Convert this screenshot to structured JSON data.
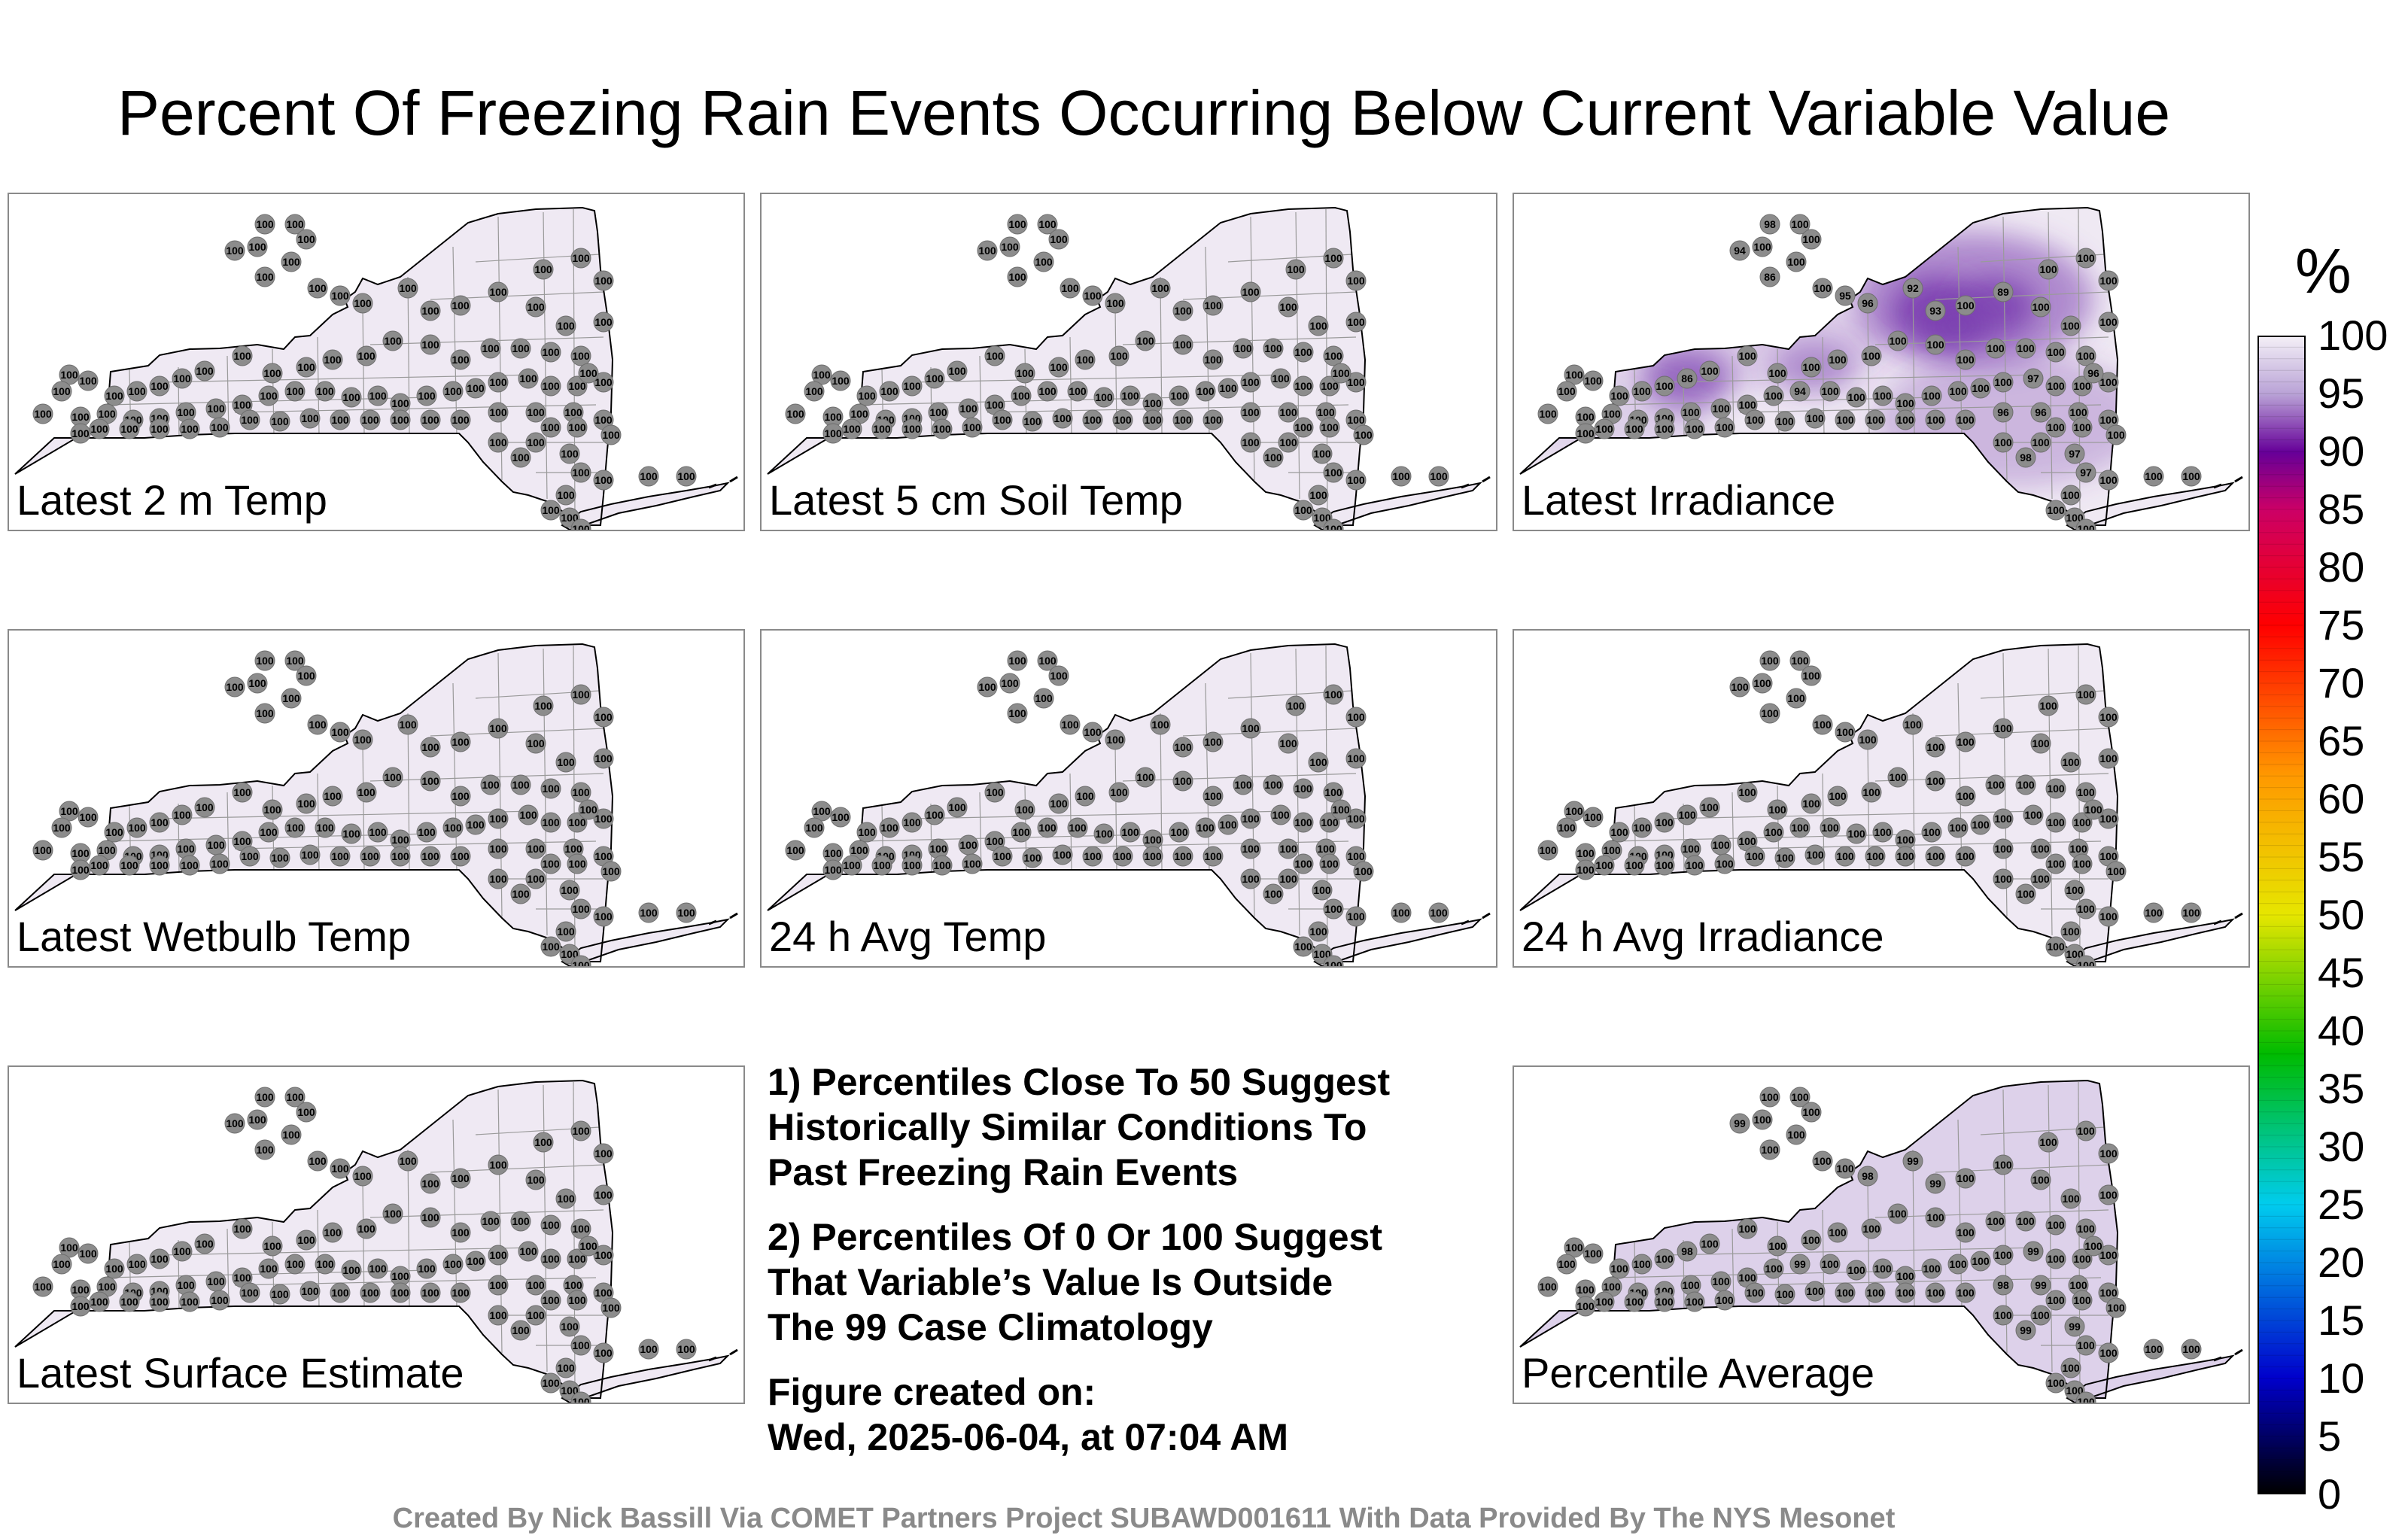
{
  "title": "Percent Of Freezing Rain Events Occurring Below Current Variable Value",
  "unit_label": "%",
  "colors": {
    "map_fill_light": "#efe9f3",
    "map_fill_medium": "#ddd1ea",
    "station_marker": "#8c8c8c",
    "map_outline": "#000000",
    "county_lines": "#9a9a9a"
  },
  "panels": [
    {
      "label": "Latest 2 m Temp"
    },
    {
      "label": "Latest 5 cm Soil Temp"
    },
    {
      "label": "Latest Irradiance"
    },
    {
      "label": "Latest Wetbulb Temp"
    },
    {
      "label": "24 h Avg Temp"
    },
    {
      "label": "24 h Avg Irradiance"
    },
    {
      "label": "Latest Surface Estimate"
    },
    {
      "label": "Percentile Average"
    }
  ],
  "notes": {
    "note1_line1": "1) Percentiles Close To 50 Suggest",
    "note1_line2": "Historically Similar Conditions To",
    "note1_line3": "Past Freezing Rain Events",
    "note2_line1": "2) Percentiles Of 0 Or 100 Suggest",
    "note2_line2": "That Variable’s Value Is Outside",
    "note2_line3": "The 99 Case Climatology",
    "created_label": "Figure created on:",
    "created_date": "Wed, 2025-06-04, at 07:04 AM"
  },
  "credit": "Created By Nick Bassill Via COMET Partners Project SUBAWD001611 With Data Provided By The NYS Mesonet",
  "chart_data": {
    "type": "heatmap",
    "colorbar": {
      "label": "%",
      "range": [
        0,
        100
      ],
      "ticks": [
        "0",
        "5",
        "10",
        "15",
        "20",
        "25",
        "30",
        "35",
        "40",
        "45",
        "50",
        "55",
        "60",
        "65",
        "70",
        "75",
        "80",
        "85",
        "90",
        "95",
        "100"
      ],
      "stops": [
        {
          "v": 0,
          "color": "#000000"
        },
        {
          "v": 10,
          "color": "#0000cc"
        },
        {
          "v": 25,
          "color": "#00ccee"
        },
        {
          "v": 38,
          "color": "#00bb00"
        },
        {
          "v": 50,
          "color": "#e6e600"
        },
        {
          "v": 62,
          "color": "#ff9900"
        },
        {
          "v": 75,
          "color": "#ff0000"
        },
        {
          "v": 85,
          "color": "#cc0066"
        },
        {
          "v": 90,
          "color": "#660099"
        },
        {
          "v": 95,
          "color": "#b9a2d6"
        },
        {
          "v": 100,
          "color": "#f4f0f7"
        }
      ]
    },
    "panels": [
      {
        "variable": "Latest 2 m Temp",
        "station_values": [
          "100"
        ]
      },
      {
        "variable": "Latest 5 cm Soil Temp",
        "station_values": [
          "100"
        ]
      },
      {
        "variable": "Latest Irradiance",
        "station_values": [
          "100",
          "98",
          "96",
          "95",
          "94",
          "93",
          "92",
          "89",
          "86",
          "86",
          "97",
          "97",
          "96",
          "98",
          "97",
          "96"
        ]
      },
      {
        "variable": "Latest Wetbulb Temp",
        "station_values": [
          "100"
        ]
      },
      {
        "variable": "24 h Avg Temp",
        "station_values": [
          "100"
        ]
      },
      {
        "variable": "24 h Avg Irradiance",
        "station_values": [
          "100"
        ]
      },
      {
        "variable": "Latest Surface Estimate",
        "station_values": [
          "100"
        ]
      },
      {
        "variable": "Percentile Average",
        "station_values": [
          "100",
          "99",
          "98",
          "99",
          "98",
          "99",
          "99",
          "98",
          "99",
          "98",
          "99"
        ]
      }
    ]
  }
}
